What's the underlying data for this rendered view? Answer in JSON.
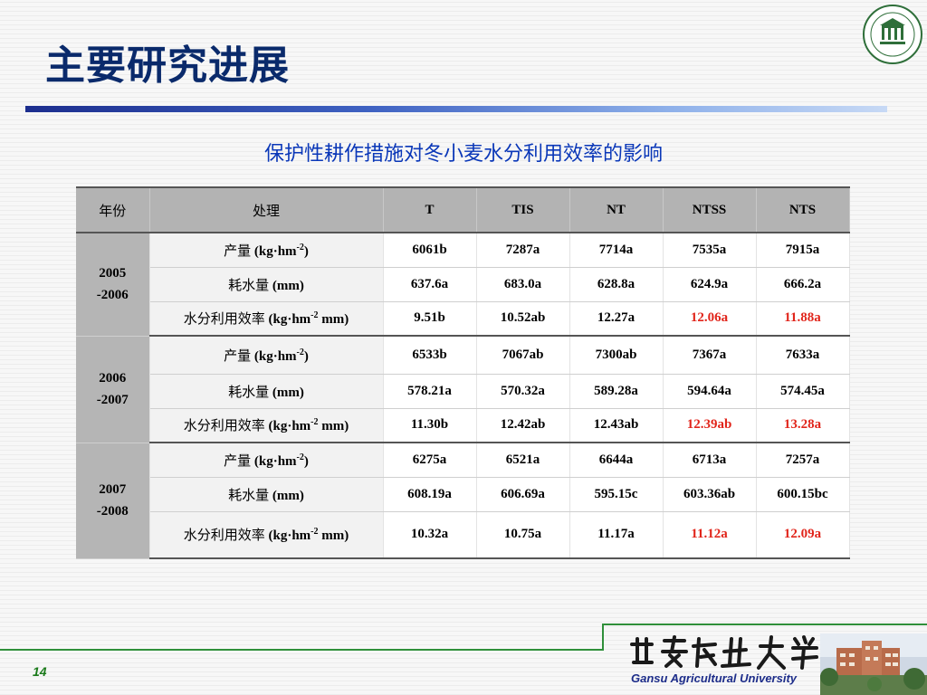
{
  "slide": {
    "title": "主要研究进展",
    "subtitle": "保护性耕作措施对冬小麦水分利用效率的影响",
    "page_number": "14",
    "footer_en": "Gansu Agricultural University",
    "logo_signature": "甘肃农业大学",
    "colors": {
      "title": "#0a2a6b",
      "subtitle": "#0a37b8",
      "highlight": "#e1251b",
      "accent_green": "#2f8f3a"
    }
  },
  "table": {
    "headers": {
      "year": "年份",
      "treatment": "处理",
      "cols": [
        "T",
        "TIS",
        "NT",
        "NTSS",
        "NTS"
      ]
    },
    "groups": [
      {
        "year_line1": "2005",
        "year_line2": "-2006",
        "rows": [
          {
            "label": "产量 ",
            "unit_pre": "(kg·hm",
            "sup": "-2",
            "unit_post": ")",
            "values": [
              "6061b",
              "7287a",
              "7714a",
              "7535a",
              "7915a"
            ],
            "red": [
              false,
              false,
              false,
              false,
              false
            ]
          },
          {
            "label": "耗水量 ",
            "unit_pre": "(mm)",
            "sup": "",
            "unit_post": "",
            "values": [
              "637.6a",
              "683.0a",
              "628.8a",
              "624.9a",
              "666.2a"
            ],
            "red": [
              false,
              false,
              false,
              false,
              false
            ]
          },
          {
            "label": "水分利用效率 ",
            "unit_pre": "(kg·hm",
            "sup": "-2",
            "unit_post": " mm)",
            "values": [
              "9.51b",
              "10.52ab",
              "12.27a",
              "12.06a",
              "11.88a"
            ],
            "red": [
              false,
              false,
              false,
              true,
              true
            ]
          }
        ]
      },
      {
        "year_line1": "2006",
        "year_line2": "-2007",
        "rows": [
          {
            "label": "产量 ",
            "unit_pre": "(kg·hm",
            "sup": "-2",
            "unit_post": ")",
            "values": [
              "6533b",
              "7067ab",
              "7300ab",
              "7367a",
              "7633a"
            ],
            "red": [
              false,
              false,
              false,
              false,
              false
            ]
          },
          {
            "label": "耗水量 ",
            "unit_pre": "(mm)",
            "sup": "",
            "unit_post": "",
            "values": [
              "578.21a",
              "570.32a",
              "589.28a",
              "594.64a",
              "574.45a"
            ],
            "red": [
              false,
              false,
              false,
              false,
              false
            ]
          },
          {
            "label": "水分利用效率 ",
            "unit_pre": "(kg·hm",
            "sup": "-2",
            "unit_post": " mm)",
            "values": [
              "11.30b",
              "12.42ab",
              "12.43ab",
              "12.39ab",
              "13.28a"
            ],
            "red": [
              false,
              false,
              false,
              true,
              true
            ]
          }
        ]
      },
      {
        "year_line1": "2007",
        "year_line2": "-2008",
        "rows": [
          {
            "label": "产量 ",
            "unit_pre": "(kg·hm",
            "sup": "-2",
            "unit_post": ")",
            "values": [
              "6275a",
              "6521a",
              "6644a",
              "6713a",
              "7257a"
            ],
            "red": [
              false,
              false,
              false,
              false,
              false
            ]
          },
          {
            "label": "耗水量 ",
            "unit_pre": "(mm)",
            "sup": "",
            "unit_post": "",
            "values": [
              "608.19a",
              "606.69a",
              "595.15c",
              "603.36ab",
              "600.15bc"
            ],
            "red": [
              false,
              false,
              false,
              false,
              false
            ]
          },
          {
            "label": "水分利用效率 ",
            "unit_pre": "(kg·hm",
            "sup": "-2",
            "unit_post": " mm)",
            "values": [
              "10.32a",
              "10.75a",
              "11.17a",
              "11.12a",
              "12.09a"
            ],
            "red": [
              false,
              false,
              false,
              true,
              true
            ]
          }
        ]
      }
    ]
  }
}
